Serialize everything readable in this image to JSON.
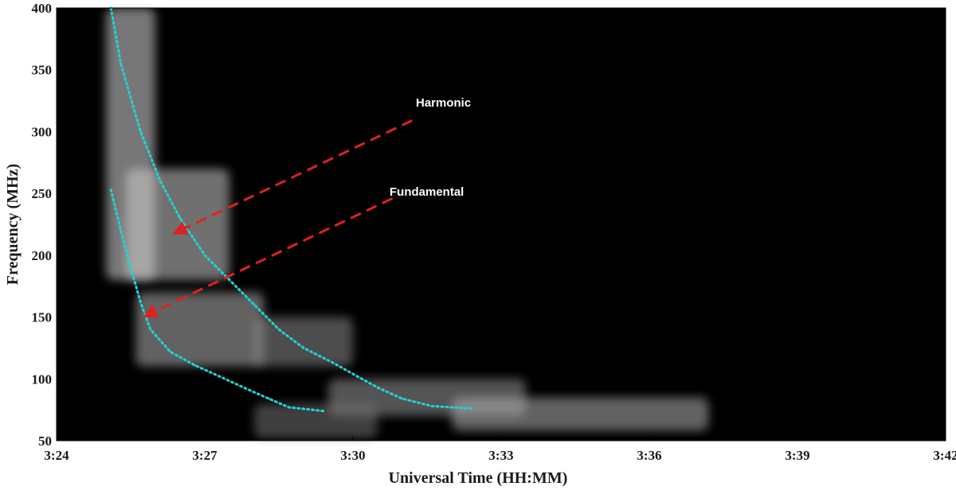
{
  "chart_data": {
    "type": "heatmap",
    "title": "",
    "xlabel": "Universal Time (HH:MM)",
    "ylabel": "Frequency (MHz)",
    "xlim": [
      "3:24",
      "3:42"
    ],
    "ylim": [
      50,
      400
    ],
    "x_ticks": [
      "3:24",
      "3:27",
      "3:30",
      "3:33",
      "3:36",
      "3:39",
      "3:42"
    ],
    "y_ticks": [
      50,
      100,
      150,
      200,
      250,
      300,
      350,
      400
    ],
    "background_color": "#000000",
    "emission_color": "#ffffff",
    "series": [
      {
        "band": "harmonic",
        "color": "#22d3d3",
        "style": "dotted",
        "points": [
          {
            "t": "3:25:06",
            "f": 400
          },
          {
            "t": "3:25:18",
            "f": 355
          },
          {
            "t": "3:25:42",
            "f": 300
          },
          {
            "t": "3:26:06",
            "f": 260
          },
          {
            "t": "3:26:30",
            "f": 230
          },
          {
            "t": "3:27:00",
            "f": 200
          },
          {
            "t": "3:27:30",
            "f": 180
          },
          {
            "t": "3:28:00",
            "f": 160
          },
          {
            "t": "3:28:30",
            "f": 140
          },
          {
            "t": "3:29:00",
            "f": 125
          },
          {
            "t": "3:29:36",
            "f": 113
          },
          {
            "t": "3:30:00",
            "f": 104
          },
          {
            "t": "3:30:30",
            "f": 93
          },
          {
            "t": "3:31:00",
            "f": 84
          },
          {
            "t": "3:31:36",
            "f": 78
          },
          {
            "t": "3:32:24",
            "f": 76
          }
        ]
      },
      {
        "band": "fundamental",
        "color": "#22d3d3",
        "style": "dotted",
        "points": [
          {
            "t": "3:25:06",
            "f": 253
          },
          {
            "t": "3:25:18",
            "f": 220
          },
          {
            "t": "3:25:30",
            "f": 190
          },
          {
            "t": "3:25:42",
            "f": 162
          },
          {
            "t": "3:25:54",
            "f": 140
          },
          {
            "t": "3:26:18",
            "f": 122
          },
          {
            "t": "3:26:48",
            "f": 111
          },
          {
            "t": "3:27:18",
            "f": 102
          },
          {
            "t": "3:27:54",
            "f": 91
          },
          {
            "t": "3:28:18",
            "f": 84
          },
          {
            "t": "3:28:42",
            "f": 77
          },
          {
            "t": "3:29:24",
            "f": 74
          }
        ]
      }
    ],
    "annotations": [
      {
        "text": "Harmonic",
        "color": "#ffffff",
        "arrow_color": "#e02020",
        "arrow_from": {
          "t": "3:31:12",
          "f": 309
        },
        "arrow_to": {
          "t": "3:26:24",
          "f": 218
        }
      },
      {
        "text": "Fundamental",
        "color": "#ffffff",
        "arrow_color": "#e02020",
        "arrow_from": {
          "t": "3:30:48",
          "f": 246
        },
        "arrow_to": {
          "t": "3:25:48",
          "f": 151
        }
      }
    ],
    "emission_regions": [
      {
        "t0": "3:25:00",
        "t1": "3:26:00",
        "f0": 180,
        "f1": 400,
        "level": 0.85
      },
      {
        "t0": "3:25:24",
        "t1": "3:27:30",
        "f0": 180,
        "f1": 270,
        "level": 0.8
      },
      {
        "t0": "3:25:36",
        "t1": "3:28:12",
        "f0": 110,
        "f1": 170,
        "level": 0.7
      },
      {
        "t0": "3:28:00",
        "t1": "3:30:00",
        "f0": 110,
        "f1": 150,
        "level": 0.55
      },
      {
        "t0": "3:29:30",
        "t1": "3:33:30",
        "f0": 70,
        "f1": 100,
        "level": 0.6
      },
      {
        "t0": "3:32:00",
        "t1": "3:37:12",
        "f0": 58,
        "f1": 85,
        "level": 0.7
      },
      {
        "t0": "3:28:00",
        "t1": "3:30:30",
        "f0": 52,
        "f1": 80,
        "level": 0.45
      }
    ],
    "grid": false,
    "legend": "none"
  }
}
